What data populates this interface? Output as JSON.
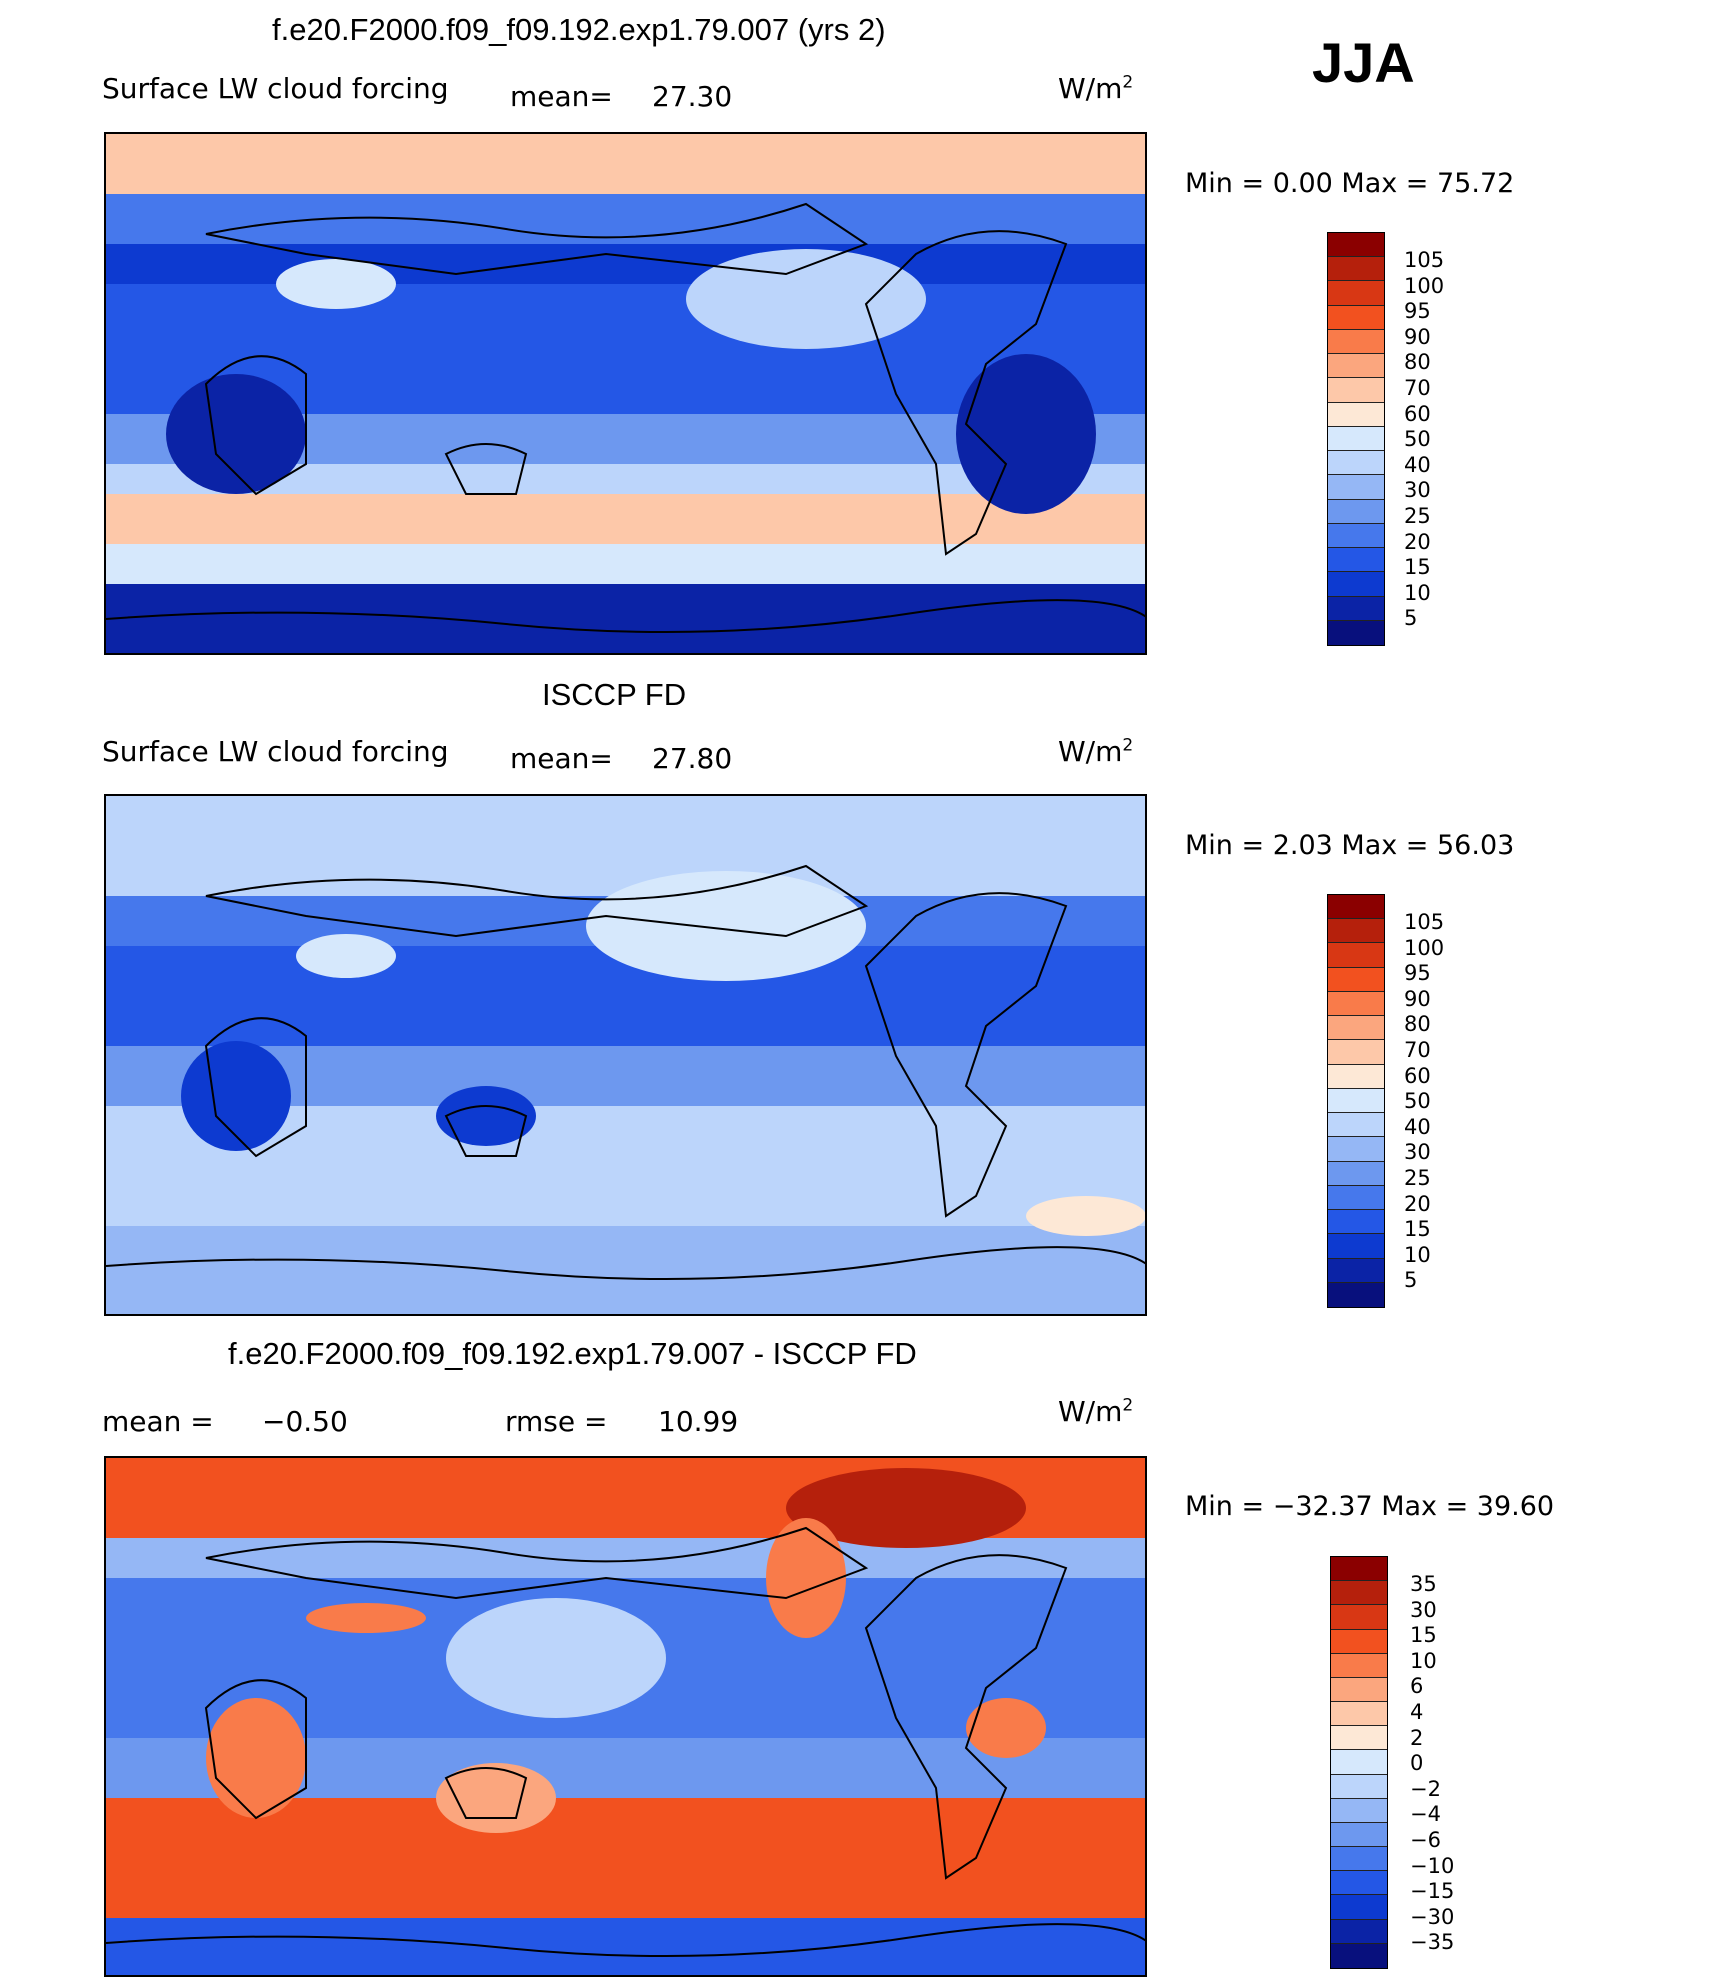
{
  "season": "JJA",
  "units_prefix": "W/m",
  "units_exp": "2",
  "panels": [
    {
      "title": "f.e20.F2000.f09_f09.192.exp1.79.007 (yrs 2)",
      "variable": "Surface LW cloud forcing",
      "mean_label": "mean=",
      "mean_value": "27.30",
      "minmax_text": "Min =    0.00 Max =   75.72",
      "min": 0.0,
      "max": 75.72,
      "colorbar": {
        "colors": [
          "#8b0000",
          "#b5200c",
          "#d83714",
          "#f2511f",
          "#f97b4a",
          "#fba67e",
          "#fdc8a9",
          "#fde8d6",
          "#d6e8fc",
          "#bcd5fb",
          "#95b7f5",
          "#6d98ef",
          "#4678ec",
          "#2457e6",
          "#0d3ad0",
          "#0b23a6",
          "#08107d"
        ],
        "ticks": [
          "105",
          "100",
          "95",
          "90",
          "80",
          "70",
          "60",
          "50",
          "40",
          "30",
          "25",
          "20",
          "15",
          "10",
          "5"
        ]
      }
    },
    {
      "title": "ISCCP FD",
      "variable": "Surface LW cloud forcing",
      "mean_label": "mean=",
      "mean_value": "27.80",
      "minmax_text": "Min =    2.03 Max =   56.03",
      "min": 2.03,
      "max": 56.03,
      "colorbar": {
        "colors": [
          "#8b0000",
          "#b5200c",
          "#d83714",
          "#f2511f",
          "#f97b4a",
          "#fba67e",
          "#fdc8a9",
          "#fde8d6",
          "#d6e8fc",
          "#bcd5fb",
          "#95b7f5",
          "#6d98ef",
          "#4678ec",
          "#2457e6",
          "#0d3ad0",
          "#0b23a6",
          "#08107d"
        ],
        "ticks": [
          "105",
          "100",
          "95",
          "90",
          "80",
          "70",
          "60",
          "50",
          "40",
          "30",
          "25",
          "20",
          "15",
          "10",
          "5"
        ]
      }
    },
    {
      "title": "f.e20.F2000.f09_f09.192.exp1.79.007 - ISCCP FD",
      "mean_label": "mean =",
      "mean_value": "−0.50",
      "rmse_label": "rmse =",
      "rmse_value": "10.99",
      "minmax_text": "Min = −32.37 Max =   39.60",
      "min": -32.37,
      "max": 39.6,
      "colorbar": {
        "colors": [
          "#8b0000",
          "#b5200c",
          "#d83714",
          "#f2511f",
          "#f97b4a",
          "#fba67e",
          "#fdc8a9",
          "#fde8d6",
          "#d6e8fc",
          "#bcd5fb",
          "#95b7f5",
          "#6d98ef",
          "#4678ec",
          "#2457e6",
          "#0d3ad0",
          "#0b23a6",
          "#08107d"
        ],
        "ticks": [
          "35",
          "30",
          "15",
          "10",
          "6",
          "4",
          "2",
          "0",
          "−2",
          "−4",
          "−6",
          "−10",
          "−15",
          "−30",
          "−35"
        ]
      }
    }
  ],
  "chart_data": [
    {
      "type": "heatmap",
      "title": "f.e20.F2000.f09_f09.192.exp1.79.007 (yrs 2)",
      "variable": "Surface LW cloud forcing",
      "units": "W/m2",
      "mean": 27.3,
      "min": 0.0,
      "max": 75.72,
      "levels": [
        5,
        10,
        15,
        20,
        25,
        30,
        40,
        50,
        60,
        70,
        80,
        90,
        95,
        100,
        105
      ]
    },
    {
      "type": "heatmap",
      "title": "ISCCP FD",
      "variable": "Surface LW cloud forcing",
      "units": "W/m2",
      "mean": 27.8,
      "min": 2.03,
      "max": 56.03,
      "levels": [
        5,
        10,
        15,
        20,
        25,
        30,
        40,
        50,
        60,
        70,
        80,
        90,
        95,
        100,
        105
      ]
    },
    {
      "type": "heatmap",
      "title": "f.e20.F2000.f09_f09.192.exp1.79.007 - ISCCP FD",
      "units": "W/m2",
      "mean": -0.5,
      "rmse": 10.99,
      "min": -32.37,
      "max": 39.6,
      "levels": [
        -35,
        -30,
        -15,
        -10,
        -6,
        -4,
        -2,
        0,
        2,
        4,
        6,
        10,
        15,
        30,
        35
      ]
    }
  ]
}
